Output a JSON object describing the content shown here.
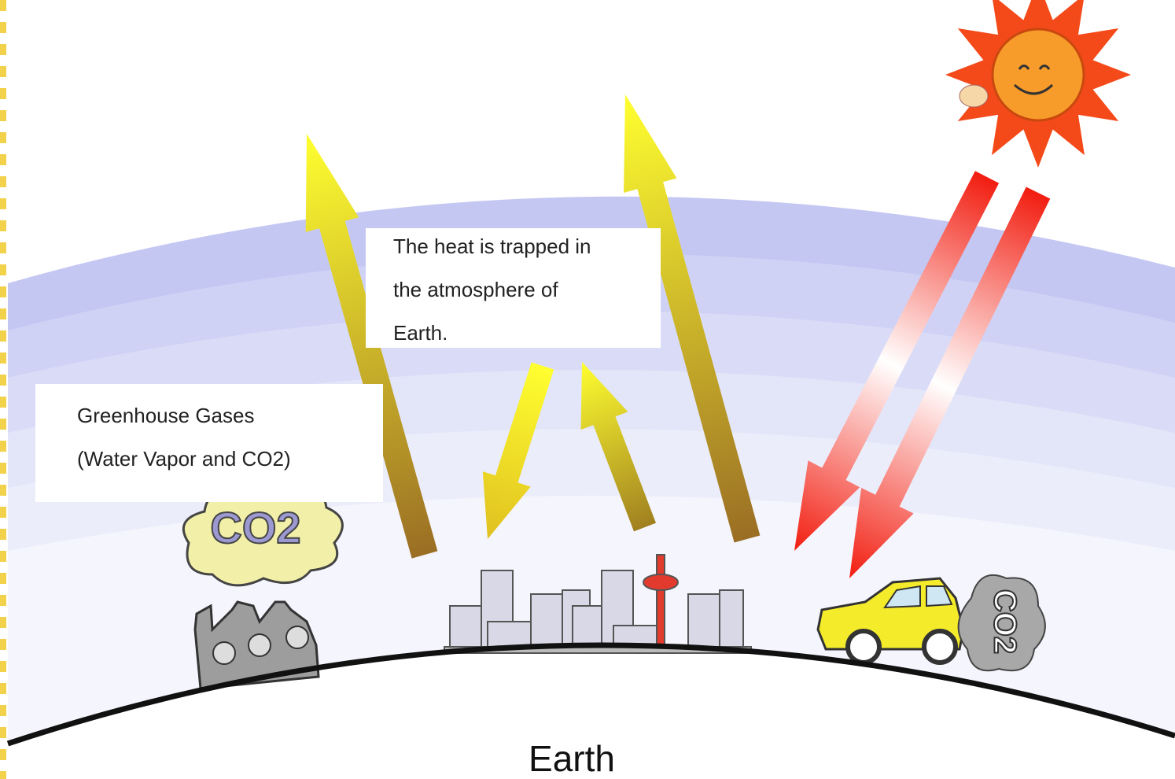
{
  "labels": {
    "heat_trapped": [
      "The heat is trapped in",
      "the atmosphere of",
      "Earth."
    ],
    "greenhouse": [
      "Greenhouse Gases",
      "(Water Vapor and CO2)"
    ],
    "factory_cloud": "CO2",
    "car_exhaust": "CO2",
    "earth": "Earth"
  }
}
